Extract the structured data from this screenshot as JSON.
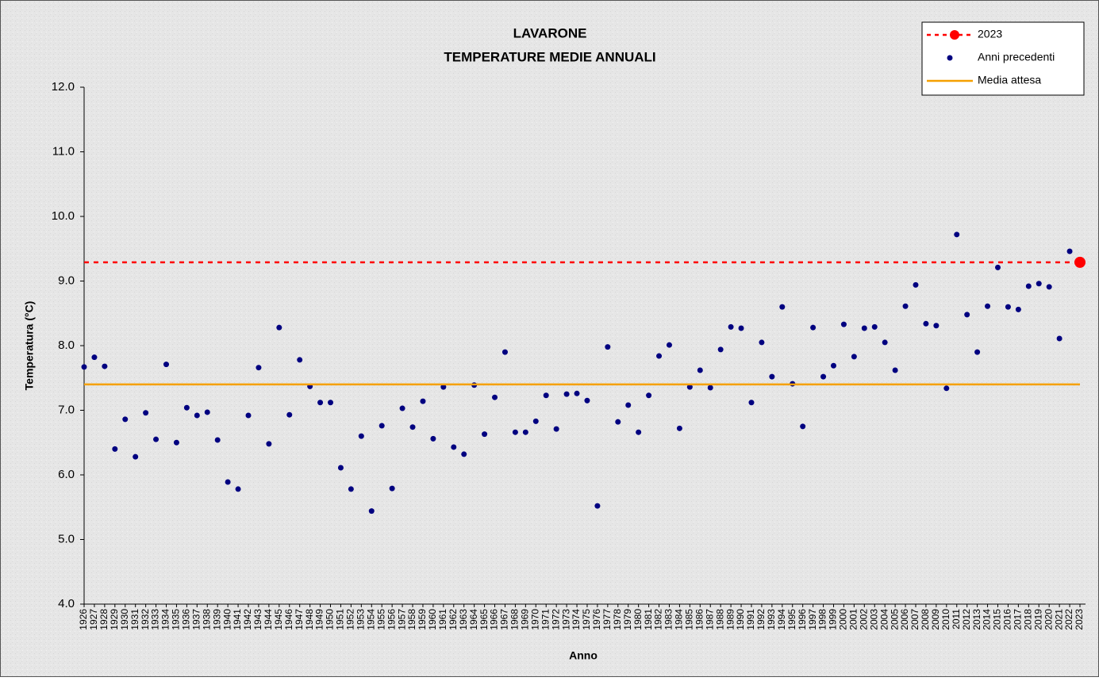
{
  "chart_data": {
    "type": "scatter",
    "title": "LAVARONE",
    "subtitle": "TEMPERATURE MEDIE ANNUALI",
    "x_label": "Anno",
    "y_label": "Temperatura (°C)",
    "categories": [
      "1926",
      "1927",
      "1928",
      "1929",
      "1930",
      "1931",
      "1932",
      "1933",
      "1934",
      "1935",
      "1936",
      "1937",
      "1938",
      "1939",
      "1940",
      "1941",
      "1942",
      "1943",
      "1944",
      "1945",
      "1946",
      "1947",
      "1948",
      "1949",
      "1950",
      "1951",
      "1952",
      "1953",
      "1954",
      "1955",
      "1956",
      "1957",
      "1958",
      "1959",
      "1960",
      "1961",
      "1962",
      "1963",
      "1964",
      "1965",
      "1966",
      "1967",
      "1968",
      "1969",
      "1970",
      "1971",
      "1972",
      "1973",
      "1974",
      "1975",
      "1976",
      "1977",
      "1978",
      "1979",
      "1980",
      "1981",
      "1982",
      "1983",
      "1984",
      "1985",
      "1986",
      "1987",
      "1988",
      "1989",
      "1990",
      "1991",
      "1992",
      "1993",
      "1994",
      "1995",
      "1996",
      "1997",
      "1998",
      "1999",
      "2000",
      "2001",
      "2002",
      "2003",
      "2004",
      "2005",
      "2006",
      "2007",
      "2008",
      "2009",
      "2010",
      "2011",
      "2012",
      "2013",
      "2014",
      "2015",
      "2016",
      "2017",
      "2018",
      "2019",
      "2020",
      "2021",
      "2022",
      "2023"
    ],
    "series": [
      {
        "name": "2023",
        "color": "#ff0000",
        "style": "dashed-line-marker",
        "values": [
          null,
          null,
          null,
          null,
          null,
          null,
          null,
          null,
          null,
          null,
          null,
          null,
          null,
          null,
          null,
          null,
          null,
          null,
          null,
          null,
          null,
          null,
          null,
          null,
          null,
          null,
          null,
          null,
          null,
          null,
          null,
          null,
          null,
          null,
          null,
          null,
          null,
          null,
          null,
          null,
          null,
          null,
          null,
          null,
          null,
          null,
          null,
          null,
          null,
          null,
          null,
          null,
          null,
          null,
          null,
          null,
          null,
          null,
          null,
          null,
          null,
          null,
          null,
          null,
          null,
          null,
          null,
          null,
          null,
          null,
          null,
          null,
          null,
          null,
          null,
          null,
          null,
          null,
          null,
          null,
          null,
          null,
          null,
          null,
          null,
          null,
          null,
          null,
          null,
          null,
          null,
          null,
          null,
          null,
          null,
          null,
          null,
          9.29
        ]
      },
      {
        "name": "Anni precedenti",
        "color": "#000080",
        "style": "marker",
        "values": [
          7.67,
          7.82,
          7.68,
          6.4,
          6.86,
          6.28,
          6.96,
          6.55,
          7.71,
          6.5,
          7.04,
          6.92,
          6.97,
          6.54,
          5.89,
          5.78,
          6.92,
          7.66,
          6.48,
          8.28,
          6.93,
          7.78,
          7.37,
          7.12,
          7.12,
          6.11,
          5.78,
          6.6,
          5.44,
          6.76,
          5.79,
          7.03,
          6.74,
          7.14,
          6.56,
          7.36,
          6.43,
          6.32,
          7.39,
          6.63,
          7.2,
          7.9,
          6.66,
          6.66,
          6.83,
          7.23,
          6.71,
          7.25,
          7.26,
          7.15,
          5.52,
          7.98,
          6.82,
          7.08,
          6.66,
          7.23,
          7.84,
          8.01,
          6.72,
          7.36,
          7.62,
          7.35,
          7.94,
          8.29,
          8.27,
          7.12,
          8.05,
          7.52,
          8.6,
          7.41,
          6.75,
          8.28,
          7.52,
          7.69,
          8.33,
          7.83,
          8.27,
          8.29,
          8.05,
          7.62,
          8.61,
          8.94,
          8.34,
          8.31,
          7.34,
          9.72,
          8.48,
          7.9,
          8.61,
          9.21,
          8.6,
          8.56,
          8.92,
          8.96,
          8.91,
          8.11,
          9.46,
          null
        ]
      },
      {
        "name": "Media attesa",
        "color": "#f5a000",
        "style": "line",
        "values": [
          7.4,
          7.4,
          7.4,
          7.4,
          7.4,
          7.4,
          7.4,
          7.4,
          7.4,
          7.4,
          7.4,
          7.4,
          7.4,
          7.4,
          7.4,
          7.4,
          7.4,
          7.4,
          7.4,
          7.4,
          7.4,
          7.4,
          7.4,
          7.4,
          7.4,
          7.4,
          7.4,
          7.4,
          7.4,
          7.4,
          7.4,
          7.4,
          7.4,
          7.4,
          7.4,
          7.4,
          7.4,
          7.4,
          7.4,
          7.4,
          7.4,
          7.4,
          7.4,
          7.4,
          7.4,
          7.4,
          7.4,
          7.4,
          7.4,
          7.4,
          7.4,
          7.4,
          7.4,
          7.4,
          7.4,
          7.4,
          7.4,
          7.4,
          7.4,
          7.4,
          7.4,
          7.4,
          7.4,
          7.4,
          7.4,
          7.4,
          7.4,
          7.4,
          7.4,
          7.4,
          7.4,
          7.4,
          7.4,
          7.4,
          7.4,
          7.4,
          7.4,
          7.4,
          7.4,
          7.4,
          7.4,
          7.4,
          7.4,
          7.4,
          7.4,
          7.4,
          7.4,
          7.4,
          7.4,
          7.4,
          7.4,
          7.4,
          7.4,
          7.4,
          7.4,
          7.4,
          7.4,
          7.4
        ]
      }
    ],
    "ylim": [
      4,
      12
    ],
    "yticks": [
      {
        "value": 4,
        "label": "4.0"
      },
      {
        "value": 5,
        "label": "5.0"
      },
      {
        "value": 6,
        "label": "6.0"
      },
      {
        "value": 7,
        "label": "7.0"
      },
      {
        "value": 8,
        "label": "8.0"
      },
      {
        "value": 9,
        "label": "9.0"
      },
      {
        "value": 10,
        "label": "10.0"
      },
      {
        "value": 11,
        "label": "11.0"
      },
      {
        "value": 12,
        "label": "12.0"
      }
    ],
    "grid": false,
    "legend": "upper-right"
  }
}
